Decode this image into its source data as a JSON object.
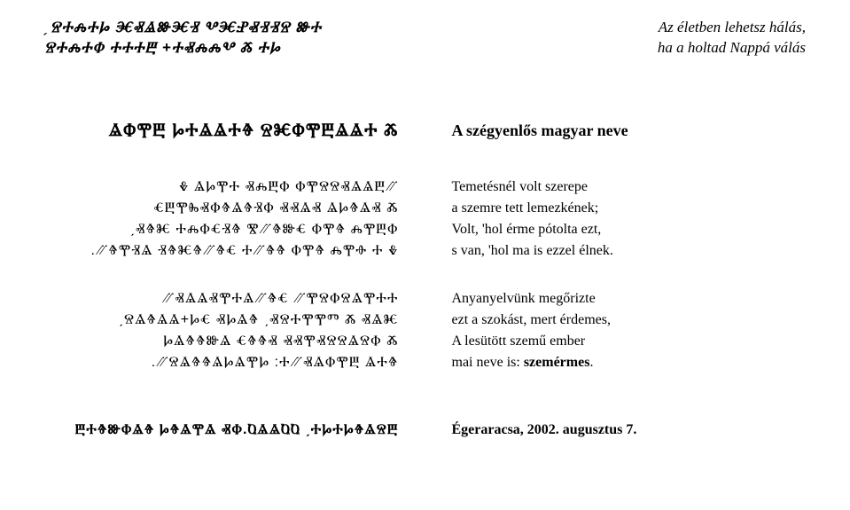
{
  "motto": {
    "rovás_line1": "ˏⰔⰀⰎⰀⰘ ⰧⰟⰡⰖⰧⰠ ⰂⰧⰐⰟⰠⰠⰔ ⰖⰀ",
    "rovás_line2": "ⰔⰀⰎⰀⰗ ⰀⰀⰀⰁ +ⰀⰟⰎⰎⰂ Ⰶ ⰀⰘ",
    "latin_line1": "Az életben lehetsz hálás,",
    "latin_line2": "ha a holtad Nappá válás"
  },
  "title": {
    "rovás": "ⰡⰗⰉⰁ ⰘⰀⰡⰡⰀⰦ ⰔⰨⰗⰉⰁⰡⰡⰀ Ⰶ",
    "latin": "A szégyenlős magyar neve"
  },
  "stanza1": {
    "rovás": [
      "Ⰷ ⰡⰘⰉⰀ ⰟⰎⰁⰗ ⰗⰉⰔⰔⰟⰡⰡⰁ⳼",
      "ⰤⰁⰉⰈⰟⰗⰦⰡⰦⰠⰗ ⰟⰟⰡⰟ ⰡⰘⰦⰡⰟ Ⰶ",
      "ˏⰟⰦⰨ ⰀⰎⰗⰤⰠⰦ Ⰺ⳼ⰦⰖⰤ ⰗⰉⰦ ⰎⰉⰁⰗ",
      ".⳼ⰦⰉⰠⰡ ⰠⰦⰨⰦ⳼ⰦⰤ Ⰰ⳼ⰦⰦ ⰗⰉⰦ ⰎⰉⰪ Ⰰ Ⰷ"
    ],
    "latin": [
      "Temetésnél volt szerepe",
      "a szemre tett lemezkének;",
      "Volt, 'hol érme pótolta ezt,",
      "s van, 'hol ma is ezzel élnek."
    ]
  },
  "stanza2": {
    "rovás": [
      "⳼ⰟⰡⰡⰟⰉⰀⰡ⳼ⰦⰤ ⳼ⰉⰔⰗⰔⰡⰉⰀⰀ",
      "ˏⰔⰡⰦⰡⰡ+ⰘⰤ ⰟⰘⰡⰦ ˏⰟⰔⰀⰉⰉⰕ Ⰶ ⰟⰡⰨ",
      "ⰘⰡⰦⰦⰖⰡ ⰤⰦⰦⰟ ⰟⰟⰉⰟⰔⰔⰡⰔⰗ Ⰶ",
      ".⳼ⰔⰡⰦⰦⰡⰘⰡⰉⰘ :Ⰰ⳼ⰟⰡⰗⰉⰁ ⰡⰀⰦ"
    ],
    "latin_l1": "Anyanyelvünk megőrizte",
    "latin_l2": "ezt a szokást, mert érdemes,",
    "latin_l3": "A lesütött szemű ember",
    "latin_l4_prefix": "mai neve is: ",
    "latin_l4_bold": "szemérmes"
  },
  "footer": {
    "rovás": "ⰁⰀⰦⰖⰗⰡⰦ ⰘⰦⰡⰉⰡ ⰟⰗ.ⰢⰡⰡⰢⰢ ˏⰀⰘⰀⰘⰦⰡⰔⰁ",
    "latin": "Égeraracsa, 2002. augusztus 7."
  }
}
